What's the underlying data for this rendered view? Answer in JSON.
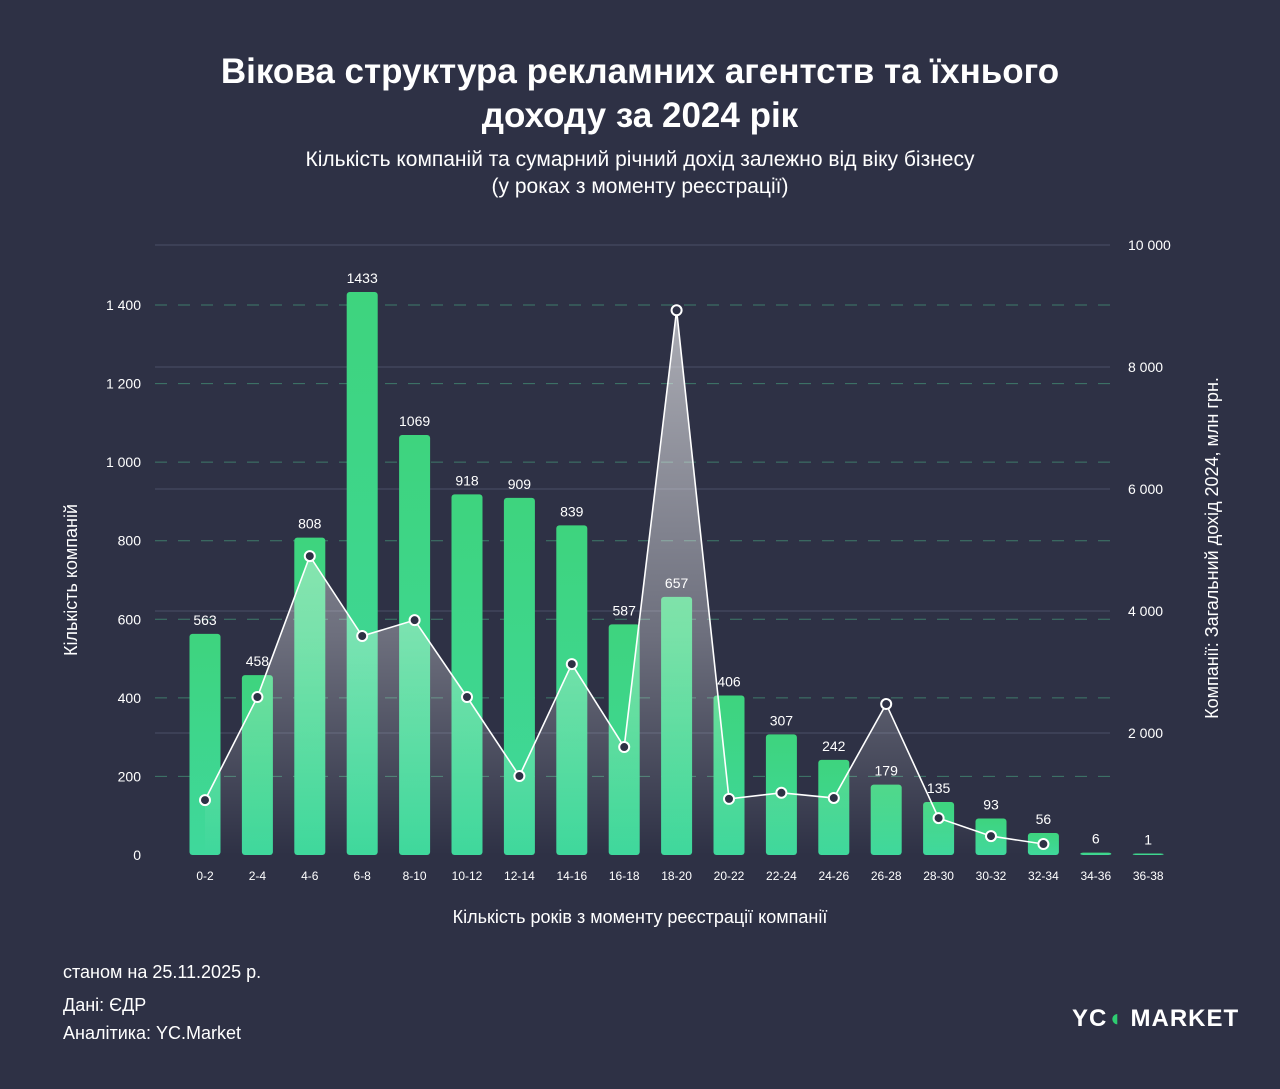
{
  "title_line1": "Вікова структура рекламних агентств та їхнього",
  "title_line2": "доходу за 2024 рік",
  "subtitle_line1": "Кількість компаній та сумарний річний дохід залежно від віку бізнесу",
  "subtitle_line2": "(у роках з моменту реєстрації)",
  "footer": {
    "date": "станом на 25.11.2025 р.",
    "source": "Дані: ЄДР",
    "analytics": "Аналітика: YC.Market"
  },
  "logo": {
    "part1": "YC",
    "part2": "MARKET"
  },
  "colors": {
    "bar": "#3ed47e",
    "line": "#ffffff",
    "background": "#2e3145"
  },
  "chart_data": {
    "type": "bar+line",
    "xlabel": "Кількість років з моменту реєстрації компанії",
    "ylabel": "Кількість компаній",
    "y2label": "Компанії: Загальний дохід 2024, млн грн.",
    "categories": [
      "0-2",
      "2-4",
      "4-6",
      "6-8",
      "8-10",
      "10-12",
      "12-14",
      "14-16",
      "16-18",
      "18-20",
      "20-22",
      "22-24",
      "24-26",
      "26-28",
      "28-30",
      "30-32",
      "32-34",
      "34-36",
      "36-38"
    ],
    "series": [
      {
        "name": "Кількість компаній",
        "type": "bar",
        "axis": "left",
        "values": [
          563,
          458,
          808,
          1433,
          1069,
          918,
          909,
          839,
          587,
          657,
          406,
          307,
          242,
          179,
          135,
          93,
          56,
          6,
          1
        ]
      },
      {
        "name": "Загальний дохід 2024, млн грн.",
        "type": "line",
        "axis": "right",
        "values": [
          900,
          2590,
          4900,
          3590,
          3850,
          2590,
          1295,
          3130,
          1770,
          8930,
          920,
          1020,
          935,
          2475,
          605,
          310,
          180,
          null,
          null
        ]
      }
    ],
    "ylim": [
      0,
      1550
    ],
    "y2lim": [
      0,
      10000
    ],
    "yticks": [
      0,
      200,
      400,
      600,
      800,
      1000,
      1200,
      1400
    ],
    "ytick_labels": [
      "0",
      "200",
      "400",
      "600",
      "800",
      "1 000",
      "1 200",
      "1 400"
    ],
    "y2ticks": [
      2000,
      4000,
      6000,
      8000,
      10000
    ],
    "y2tick_labels": [
      "2 000",
      "4 000",
      "6 000",
      "8 000",
      "10 000"
    ]
  }
}
